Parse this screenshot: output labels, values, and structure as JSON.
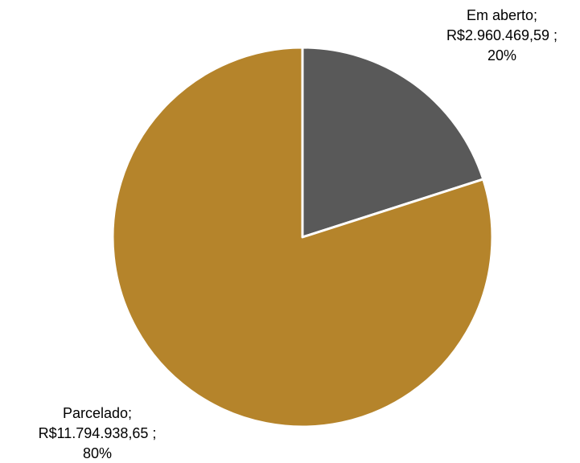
{
  "chart_data": {
    "type": "pie",
    "title": "",
    "slices": [
      {
        "label": "Em aberto",
        "value": 2960469.59,
        "percent": 20,
        "value_text": "R$2.960.469,59",
        "label_lines": [
          "Em aberto;",
          "R$2.960.469,59 ;",
          "20%"
        ],
        "color": "#595959"
      },
      {
        "label": "Parcelado",
        "value": 11794938.65,
        "percent": 80,
        "value_text": "R$11.794.938,65",
        "label_lines": [
          "Parcelado;",
          "R$11.794.938,65 ;",
          "80%"
        ],
        "color": "#b5842b"
      }
    ],
    "start_angle": "12 o'clock",
    "direction": "clockwise",
    "legend": "none"
  }
}
